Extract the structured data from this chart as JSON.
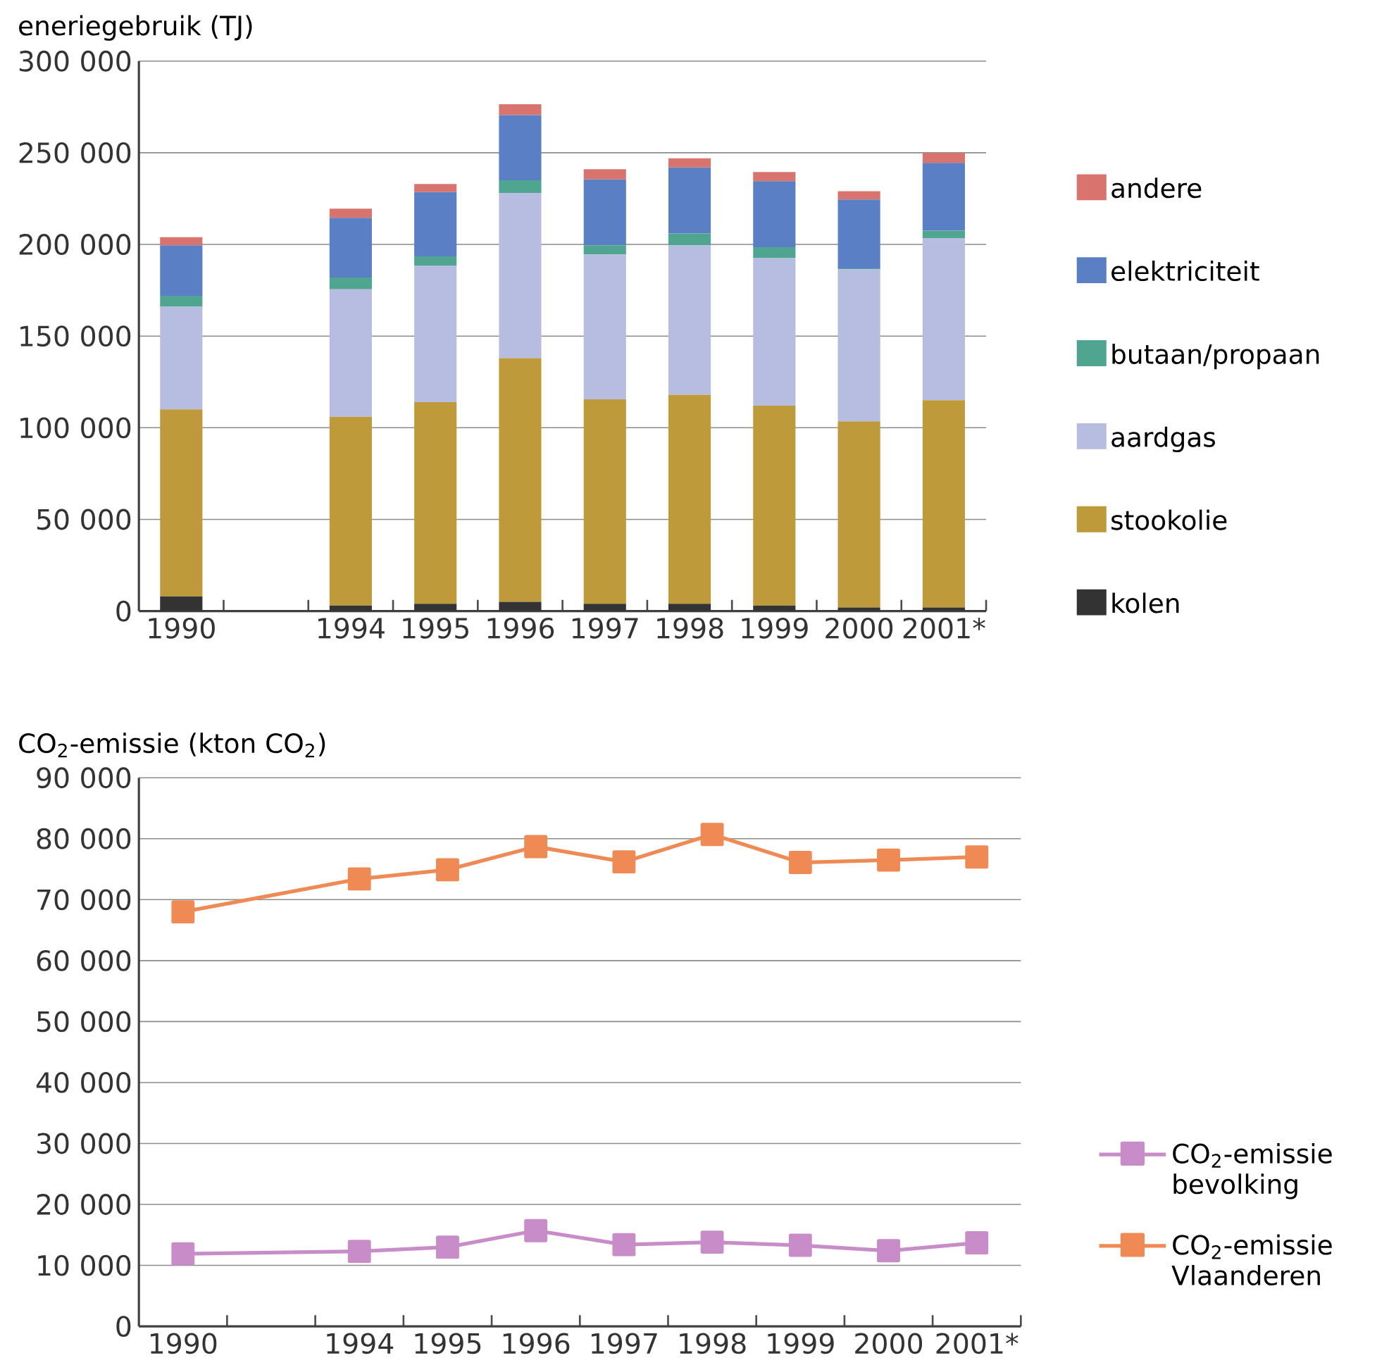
{
  "chart_data": [
    {
      "type": "bar",
      "stacked": true,
      "ylabel": "eneriegebruik (TJ)",
      "categories": [
        "1990",
        null,
        "1994",
        "1995",
        "1996",
        "1997",
        "1998",
        "1999",
        "2000",
        "2001*"
      ],
      "series": [
        {
          "name": "kolen",
          "color": "#333333",
          "values": [
            8000,
            null,
            3000,
            4000,
            5000,
            4000,
            4000,
            3000,
            2000,
            2000
          ]
        },
        {
          "name": "stookolie",
          "color": "#bf9a3a",
          "values": [
            102000,
            null,
            103000,
            110000,
            133000,
            111500,
            114000,
            109000,
            101500,
            113000
          ]
        },
        {
          "name": "aardgas",
          "color": "#b7bde0",
          "values": [
            56000,
            null,
            69500,
            74500,
            90000,
            79000,
            81500,
            80500,
            83000,
            88500
          ]
        },
        {
          "name": "butaan/propaan",
          "color": "#4fa590",
          "values": [
            6000,
            null,
            6500,
            5000,
            7000,
            5000,
            6500,
            6000,
            500,
            4000
          ]
        },
        {
          "name": "elektriciteit",
          "color": "#5b7fc4",
          "values": [
            27500,
            null,
            32500,
            35000,
            35500,
            36000,
            36000,
            36000,
            37500,
            37000
          ]
        },
        {
          "name": "andere",
          "color": "#d9736e",
          "values": [
            4500,
            null,
            5000,
            4500,
            6000,
            5500,
            5000,
            5000,
            4500,
            5500
          ]
        }
      ],
      "ylim": [
        0,
        300000
      ],
      "yticks": [
        {
          "value": 0,
          "label": "0"
        },
        {
          "value": 50000,
          "label": "50 000"
        },
        {
          "value": 100000,
          "label": "100 000"
        },
        {
          "value": 150000,
          "label": "150 000"
        },
        {
          "value": 200000,
          "label": "200 000"
        },
        {
          "value": 250000,
          "label": "250 000"
        },
        {
          "value": 300000,
          "label": "300 000"
        }
      ],
      "grid": "y",
      "legend": "right"
    },
    {
      "type": "line",
      "ylabel": "CO$_{2}$-emissie (kton CO$_{2}$)",
      "categories": [
        "1990",
        null,
        "1994",
        "1995",
        "1996",
        "1997",
        "1998",
        "1999",
        "2000",
        "2001*"
      ],
      "series": [
        {
          "name": "CO$_{2}$-emissie Vlaanderen",
          "color": "#f08a55",
          "values": [
            68000,
            null,
            73400,
            74900,
            78700,
            76200,
            80700,
            76100,
            76500,
            77000
          ]
        },
        {
          "name": "CO$_{2}$-emissie bevolking",
          "color": "#c88cc8",
          "values": [
            11900,
            null,
            12300,
            13000,
            15700,
            13400,
            13800,
            13300,
            12400,
            13700
          ]
        }
      ],
      "ylim": [
        0,
        90000
      ],
      "yticks": [
        {
          "value": 0,
          "label": "0"
        },
        {
          "value": 10000,
          "label": "10 000"
        },
        {
          "value": 20000,
          "label": "20 000"
        },
        {
          "value": 30000,
          "label": "30 000"
        },
        {
          "value": 40000,
          "label": "40 000"
        },
        {
          "value": 50000,
          "label": "50 000"
        },
        {
          "value": 60000,
          "label": "60 000"
        },
        {
          "value": 70000,
          "label": "70 000"
        },
        {
          "value": 80000,
          "label": "80 000"
        },
        {
          "value": 90000,
          "label": "90 000"
        }
      ],
      "grid": "y",
      "legend": "right",
      "marker": "square"
    }
  ]
}
